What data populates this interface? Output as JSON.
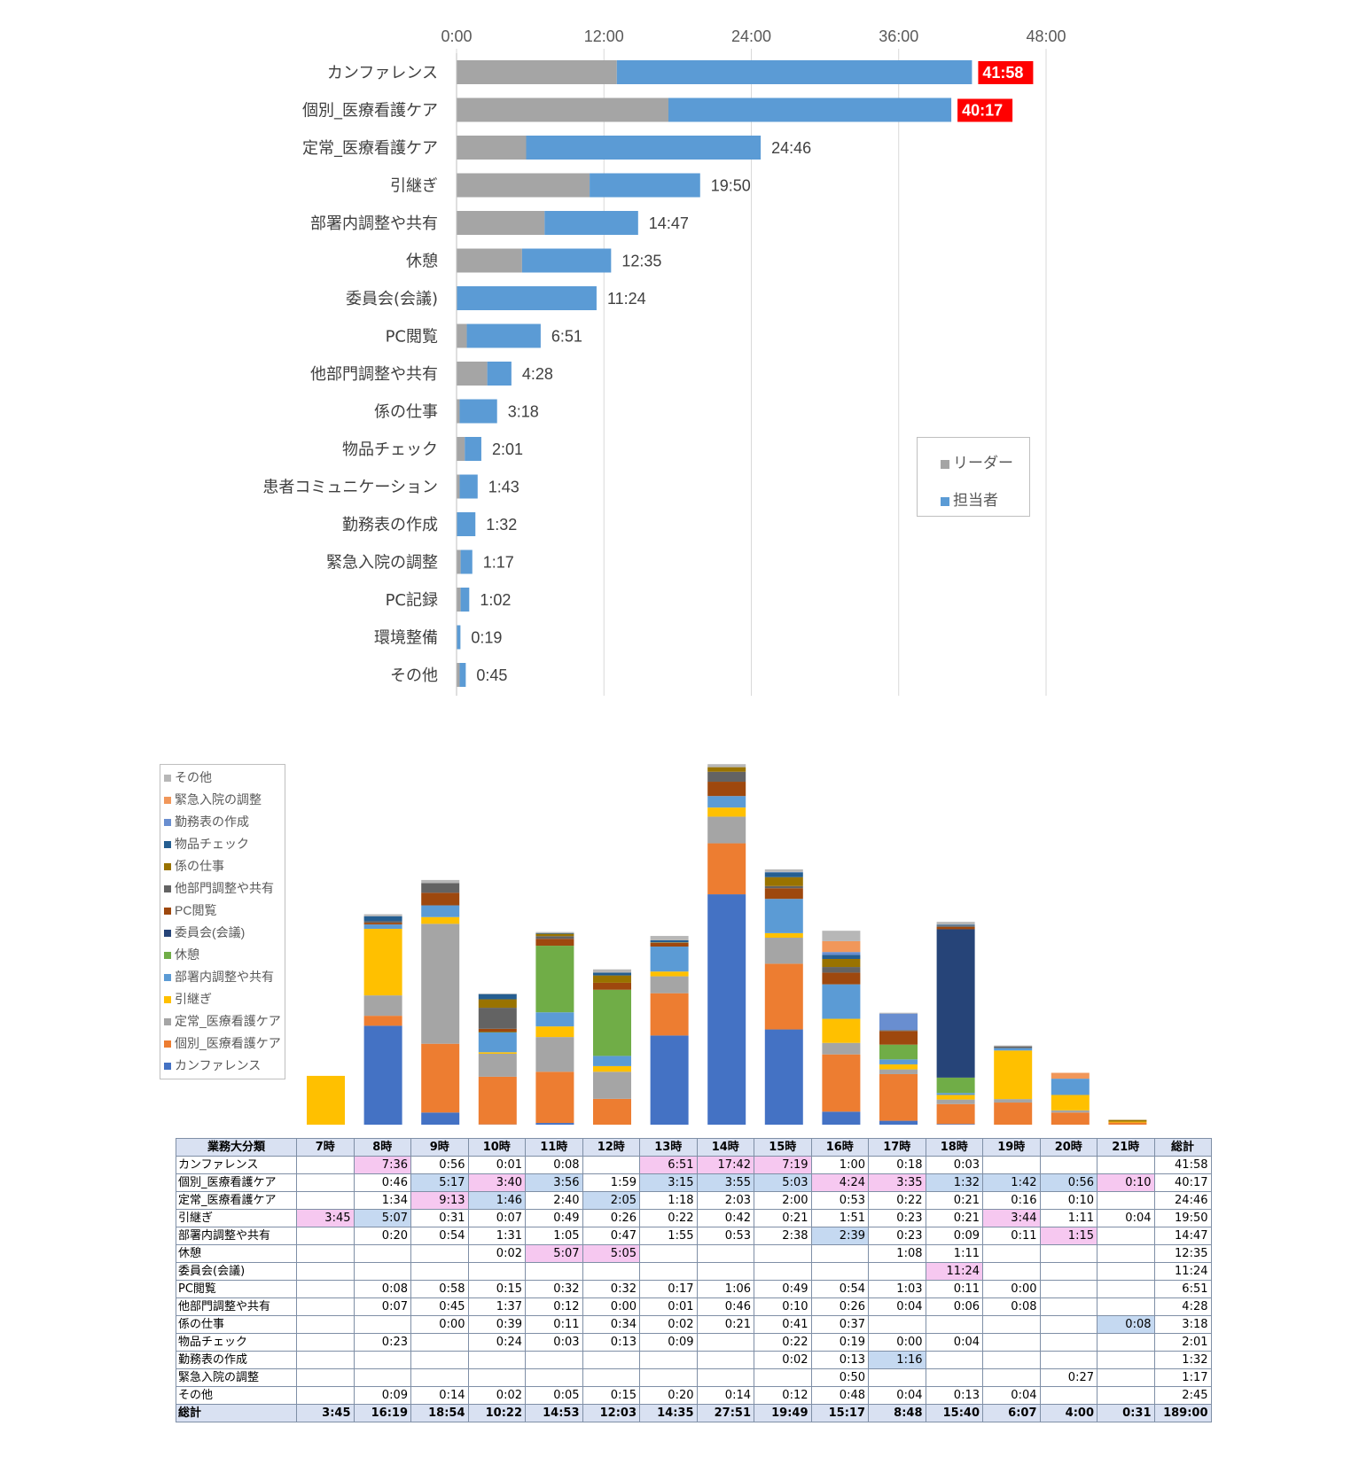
{
  "chart_data": [
    {
      "type": "bar",
      "orientation": "horizontal",
      "stacked": true,
      "axis_ticks": [
        "0:00",
        "12:00",
        "24:00",
        "36:00",
        "48:00"
      ],
      "xlim_minutes": [
        0,
        2880
      ],
      "categories": [
        "カンファレンス",
        "個別_医療看護ケア",
        "定常_医療看護ケア",
        "引継ぎ",
        "部署内調整や共有",
        "休憩",
        "委員会(会議)",
        "PC閲覧",
        "他部門調整や共有",
        "係の仕事",
        "物品チェック",
        "患者コミュニケーション",
        "勤務表の作成",
        "緊急入院の調整",
        "PC記録",
        "環境整備",
        "その他"
      ],
      "totals": [
        "41:58",
        "40:17",
        "24:46",
        "19:50",
        "14:47",
        "12:35",
        "11:24",
        "6:51",
        "4:28",
        "3:18",
        "2:01",
        "1:43",
        "1:32",
        "1:17",
        "1:02",
        "0:19",
        "0:45"
      ],
      "highlighted_totals": [
        0,
        1
      ],
      "highlight_color": "#ff0000",
      "series": [
        {
          "name": "リーダー",
          "color": "#a5a5a5",
          "values_minutes": [
            783,
            1035,
            340,
            650,
            430,
            320,
            0,
            50,
            150,
            15,
            40,
            15,
            0,
            20,
            20,
            0,
            15
          ]
        },
        {
          "name": "担当者",
          "color": "#5b9bd5",
          "values_minutes": [
            1735,
            1382,
            1146,
            540,
            457,
            435,
            684,
            361,
            118,
            183,
            81,
            88,
            92,
            57,
            42,
            19,
            30
          ]
        }
      ],
      "legend": [
        "リーダー",
        "担当者"
      ]
    },
    {
      "type": "bar",
      "stacked": true,
      "categories": [
        "7時",
        "8時",
        "9時",
        "10時",
        "11時",
        "12時",
        "13時",
        "14時",
        "15時",
        "16時",
        "17時",
        "18時",
        "19時",
        "20時",
        "21時"
      ],
      "series": [
        {
          "name": "カンファレンス",
          "color": "#4472c4",
          "values": [
            "",
            "7:36",
            "0:56",
            "0:01",
            "0:08",
            "",
            "6:51",
            "17:42",
            "7:19",
            "1:00",
            "0:18",
            "0:03",
            "",
            "",
            ""
          ]
        },
        {
          "name": "個別_医療看護ケア",
          "color": "#ed7d31",
          "values": [
            "",
            "0:46",
            "5:17",
            "3:40",
            "3:56",
            "1:59",
            "3:15",
            "3:55",
            "5:03",
            "4:24",
            "3:35",
            "1:32",
            "1:42",
            "0:56",
            "0:10"
          ]
        },
        {
          "name": "定常_医療看護ケア",
          "color": "#a5a5a5",
          "values": [
            "",
            "1:34",
            "9:13",
            "1:46",
            "2:40",
            "2:05",
            "1:18",
            "2:03",
            "2:00",
            "0:53",
            "0:22",
            "0:21",
            "0:16",
            "0:10",
            ""
          ]
        },
        {
          "name": "引継ぎ",
          "color": "#ffc000",
          "values": [
            "3:45",
            "5:07",
            "0:31",
            "0:07",
            "0:49",
            "0:26",
            "0:22",
            "0:42",
            "0:21",
            "1:51",
            "0:23",
            "0:21",
            "3:44",
            "1:11",
            "0:04"
          ]
        },
        {
          "name": "部署内調整や共有",
          "color": "#5b9bd5",
          "values": [
            "",
            "0:20",
            "0:54",
            "1:31",
            "1:05",
            "0:47",
            "1:55",
            "0:53",
            "2:38",
            "2:39",
            "0:23",
            "0:09",
            "0:11",
            "1:15",
            ""
          ]
        },
        {
          "name": "休憩",
          "color": "#70ad47",
          "values": [
            "",
            "",
            "",
            "0:02",
            "5:07",
            "5:05",
            "",
            "",
            "",
            "",
            "1:08",
            "1:11",
            "",
            "",
            ""
          ]
        },
        {
          "name": "委員会(会議)",
          "color": "#264478",
          "values": [
            "",
            "",
            "",
            "",
            "",
            "",
            "",
            "",
            "",
            "",
            "",
            "11:24",
            "",
            "",
            ""
          ]
        },
        {
          "name": "PC閲覧",
          "color": "#9e480e",
          "values": [
            "",
            "0:08",
            "0:58",
            "0:15",
            "0:32",
            "0:32",
            "0:17",
            "1:06",
            "0:49",
            "0:54",
            "1:03",
            "0:11",
            "0:00",
            "",
            ""
          ]
        },
        {
          "name": "他部門調整や共有",
          "color": "#636363",
          "values": [
            "",
            "0:07",
            "0:45",
            "1:37",
            "0:12",
            "0:00",
            "0:01",
            "0:46",
            "0:10",
            "0:26",
            "0:04",
            "0:06",
            "0:08",
            "",
            ""
          ]
        },
        {
          "name": "係の仕事",
          "color": "#997300",
          "values": [
            "",
            "",
            "0:00",
            "0:39",
            "0:11",
            "0:34",
            "0:02",
            "0:21",
            "0:41",
            "0:37",
            "",
            "",
            "",
            "",
            "0:08"
          ]
        },
        {
          "name": "物品チェック",
          "color": "#255e91",
          "values": [
            "",
            "0:23",
            "",
            "0:24",
            "0:03",
            "0:13",
            "0:09",
            "",
            "0:22",
            "0:19",
            "0:00",
            "0:04",
            "",
            "",
            ""
          ]
        },
        {
          "name": "勤務表の作成",
          "color": "#698ed0",
          "values": [
            "",
            "",
            "",
            "",
            "",
            "",
            "",
            "",
            "0:02",
            "0:13",
            "1:16",
            "",
            "",
            "",
            ""
          ]
        },
        {
          "name": "緊急入院の調整",
          "color": "#f1975a",
          "values": [
            "",
            "",
            "",
            "",
            "",
            "",
            "",
            "",
            "",
            "0:50",
            "",
            "",
            "",
            "0:27",
            ""
          ]
        },
        {
          "name": "その他",
          "color": "#b7b7b7",
          "values": [
            "",
            "0:09",
            "0:14",
            "0:02",
            "0:05",
            "0:15",
            "0:20",
            "0:14",
            "0:12",
            "0:48",
            "0:04",
            "0:13",
            "0:04",
            "",
            ""
          ]
        }
      ],
      "legend": [
        "その他",
        "緊急入院の調整",
        "勤務表の作成",
        "物品チェック",
        "係の仕事",
        "他部門調整や共有",
        "PC閲覧",
        "委員会(会議)",
        "休憩",
        "部署内調整や共有",
        "引継ぎ",
        "定常_医療看護ケア",
        "個別_医療看護ケア",
        "カンファレンス"
      ]
    },
    {
      "type": "table",
      "header": [
        "業務大分類",
        "7時",
        "8時",
        "9時",
        "10時",
        "11時",
        "12時",
        "13時",
        "14時",
        "15時",
        "16時",
        "17時",
        "18時",
        "19時",
        "20時",
        "21時",
        "総計"
      ],
      "rows": [
        {
          "label": "カンファレンス",
          "cells": [
            "",
            "7:36",
            "0:56",
            "0:01",
            "0:08",
            "",
            "6:51",
            "17:42",
            "7:19",
            "1:00",
            "0:18",
            "0:03",
            "",
            "",
            "",
            "41:58"
          ],
          "hl": [
            "",
            "p",
            "",
            "",
            "",
            "",
            "p",
            "p",
            "p",
            "",
            "",
            "",
            "",
            "",
            "",
            ""
          ]
        },
        {
          "label": "個別_医療看護ケア",
          "cells": [
            "",
            "0:46",
            "5:17",
            "3:40",
            "3:56",
            "1:59",
            "3:15",
            "3:55",
            "5:03",
            "4:24",
            "3:35",
            "1:32",
            "1:42",
            "0:56",
            "0:10",
            "40:17"
          ],
          "hl": [
            "",
            "",
            "b",
            "p",
            "b",
            "",
            "b",
            "b",
            "b",
            "p",
            "p",
            "b",
            "b",
            "b",
            "p",
            ""
          ]
        },
        {
          "label": "定常_医療看護ケア",
          "cells": [
            "",
            "1:34",
            "9:13",
            "1:46",
            "2:40",
            "2:05",
            "1:18",
            "2:03",
            "2:00",
            "0:53",
            "0:22",
            "0:21",
            "0:16",
            "0:10",
            "",
            "24:46"
          ],
          "hl": [
            "",
            "",
            "p",
            "b",
            "",
            "b",
            "",
            "",
            "",
            "",
            "",
            "",
            "",
            "",
            "",
            ""
          ]
        },
        {
          "label": "引継ぎ",
          "cells": [
            "3:45",
            "5:07",
            "0:31",
            "0:07",
            "0:49",
            "0:26",
            "0:22",
            "0:42",
            "0:21",
            "1:51",
            "0:23",
            "0:21",
            "3:44",
            "1:11",
            "0:04",
            "19:50"
          ],
          "hl": [
            "p",
            "b",
            "",
            "",
            "",
            "",
            "",
            "",
            "",
            "",
            "",
            "",
            "p",
            "",
            "",
            ""
          ]
        },
        {
          "label": "部署内調整や共有",
          "cells": [
            "",
            "0:20",
            "0:54",
            "1:31",
            "1:05",
            "0:47",
            "1:55",
            "0:53",
            "2:38",
            "2:39",
            "0:23",
            "0:09",
            "0:11",
            "1:15",
            "",
            "14:47"
          ],
          "hl": [
            "",
            "",
            "",
            "",
            "",
            "",
            "",
            "",
            "",
            "b",
            "",
            "",
            "",
            "p",
            "",
            ""
          ]
        },
        {
          "label": "休憩",
          "cells": [
            "",
            "",
            "",
            "0:02",
            "5:07",
            "5:05",
            "",
            "",
            "",
            "",
            "1:08",
            "1:11",
            "",
            "",
            "",
            "12:35"
          ],
          "hl": [
            "",
            "",
            "",
            "",
            "p",
            "p",
            "",
            "",
            "",
            "",
            "",
            "",
            "",
            "",
            "",
            ""
          ]
        },
        {
          "label": "委員会(会議)",
          "cells": [
            "",
            "",
            "",
            "",
            "",
            "",
            "",
            "",
            "",
            "",
            "",
            "11:24",
            "",
            "",
            "",
            "11:24"
          ],
          "hl": [
            "",
            "",
            "",
            "",
            "",
            "",
            "",
            "",
            "",
            "",
            "",
            "p",
            "",
            "",
            "",
            ""
          ]
        },
        {
          "label": "PC閲覧",
          "cells": [
            "",
            "0:08",
            "0:58",
            "0:15",
            "0:32",
            "0:32",
            "0:17",
            "1:06",
            "0:49",
            "0:54",
            "1:03",
            "0:11",
            "0:00",
            "",
            "",
            "6:51"
          ],
          "hl": []
        },
        {
          "label": "他部門調整や共有",
          "cells": [
            "",
            "0:07",
            "0:45",
            "1:37",
            "0:12",
            "0:00",
            "0:01",
            "0:46",
            "0:10",
            "0:26",
            "0:04",
            "0:06",
            "0:08",
            "",
            "",
            "4:28"
          ],
          "hl": []
        },
        {
          "label": "係の仕事",
          "cells": [
            "",
            "",
            "0:00",
            "0:39",
            "0:11",
            "0:34",
            "0:02",
            "0:21",
            "0:41",
            "0:37",
            "",
            "",
            "",
            "",
            "0:08",
            "3:18"
          ],
          "hl": [
            "",
            "",
            "",
            "",
            "",
            "",
            "",
            "",
            "",
            "",
            "",
            "",
            "",
            "",
            "b",
            ""
          ]
        },
        {
          "label": "物品チェック",
          "cells": [
            "",
            "0:23",
            "",
            "0:24",
            "0:03",
            "0:13",
            "0:09",
            "",
            "0:22",
            "0:19",
            "0:00",
            "0:04",
            "",
            "",
            "",
            "2:01"
          ],
          "hl": []
        },
        {
          "label": "勤務表の作成",
          "cells": [
            "",
            "",
            "",
            "",
            "",
            "",
            "",
            "",
            "0:02",
            "0:13",
            "1:16",
            "",
            "",
            "",
            "",
            "1:32"
          ],
          "hl": [
            "",
            "",
            "",
            "",
            "",
            "",
            "",
            "",
            "",
            "",
            "b",
            "",
            "",
            "",
            "",
            ""
          ]
        },
        {
          "label": "緊急入院の調整",
          "cells": [
            "",
            "",
            "",
            "",
            "",
            "",
            "",
            "",
            "",
            "0:50",
            "",
            "",
            "",
            "0:27",
            "",
            "1:17"
          ],
          "hl": []
        },
        {
          "label": "その他",
          "cells": [
            "",
            "0:09",
            "0:14",
            "0:02",
            "0:05",
            "0:15",
            "0:20",
            "0:14",
            "0:12",
            "0:48",
            "0:04",
            "0:13",
            "0:04",
            "",
            "",
            "2:45"
          ],
          "hl": []
        }
      ],
      "total_row": {
        "label": "総計",
        "cells": [
          "3:45",
          "16:19",
          "18:54",
          "10:22",
          "14:53",
          "12:03",
          "14:35",
          "27:51",
          "19:49",
          "15:17",
          "8:48",
          "15:40",
          "6:07",
          "4:00",
          "0:31",
          "189:00"
        ]
      }
    }
  ]
}
